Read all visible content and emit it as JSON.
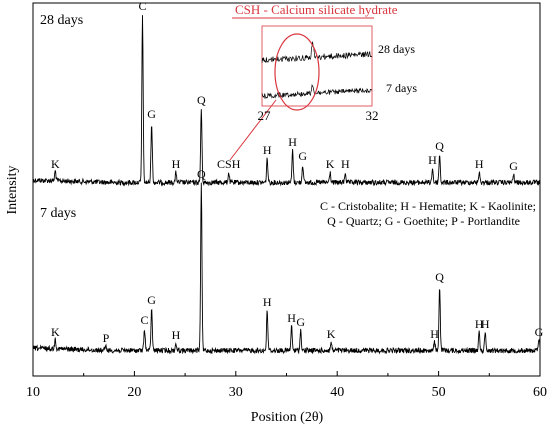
{
  "chart_data": {
    "type": "line",
    "xlabel": "Position (2θ)",
    "ylabel": "Intensity",
    "xlim": [
      10,
      60
    ],
    "x_ticks": [
      "10",
      "20",
      "30",
      "40",
      "50",
      "60"
    ],
    "grid": false,
    "y_tick_labels_shown": false,
    "series": [
      {
        "name": "28 days",
        "peaks": [
          {
            "label": "K",
            "x": 12.2,
            "h": 10
          },
          {
            "label": "C",
            "x": 20.8,
            "h": 168
          },
          {
            "label": "G",
            "x": 21.7,
            "h": 60
          },
          {
            "label": "H",
            "x": 24.1,
            "h": 10
          },
          {
            "label": "Q",
            "x": 26.6,
            "h": 74
          },
          {
            "label": "CSH",
            "x": 29.3,
            "h": 10
          },
          {
            "label": "H",
            "x": 33.1,
            "h": 24
          },
          {
            "label": "H",
            "x": 35.6,
            "h": 32
          },
          {
            "label": "G",
            "x": 36.6,
            "h": 18
          },
          {
            "label": "K",
            "x": 39.3,
            "h": 10
          },
          {
            "label": "H",
            "x": 40.8,
            "h": 10
          },
          {
            "label": "H",
            "x": 49.4,
            "h": 14
          },
          {
            "label": "Q",
            "x": 50.1,
            "h": 28
          },
          {
            "label": "H",
            "x": 54.0,
            "h": 10
          },
          {
            "label": "G",
            "x": 57.4,
            "h": 8
          }
        ]
      },
      {
        "name": "7 days",
        "peaks": [
          {
            "label": "K",
            "x": 12.2,
            "h": 10
          },
          {
            "label": "P",
            "x": 17.2,
            "h": 4
          },
          {
            "label": "C",
            "x": 21.0,
            "h": 22
          },
          {
            "label": "G",
            "x": 21.7,
            "h": 42
          },
          {
            "label": "H",
            "x": 24.1,
            "h": 7
          },
          {
            "label": "Q",
            "x": 26.6,
            "h": 168
          },
          {
            "label": "H",
            "x": 33.1,
            "h": 40
          },
          {
            "label": "H",
            "x": 35.5,
            "h": 24
          },
          {
            "label": "G",
            "x": 36.4,
            "h": 20
          },
          {
            "label": "K",
            "x": 39.4,
            "h": 8
          },
          {
            "label": "H",
            "x": 49.6,
            "h": 8
          },
          {
            "label": "Q",
            "x": 50.1,
            "h": 65
          },
          {
            "label": "H",
            "x": 54.0,
            "h": 18
          },
          {
            "label": "H",
            "x": 54.6,
            "h": 18
          },
          {
            "label": "G",
            "x": 59.9,
            "h": 10
          }
        ]
      }
    ],
    "legend_text": [
      "C - Cristobalite; H - Hematite; K - Kaolinite;",
      "Q - Quartz; G - Goethite; P - Portlandite"
    ],
    "inset": {
      "title": "CSH - Calcium silicate hydrate",
      "xlim": [
        27,
        32
      ],
      "x_ticks": [
        "27",
        "32"
      ],
      "series_labels": [
        "28 days",
        "7 days"
      ],
      "highlight_color": "#d9363e"
    }
  }
}
